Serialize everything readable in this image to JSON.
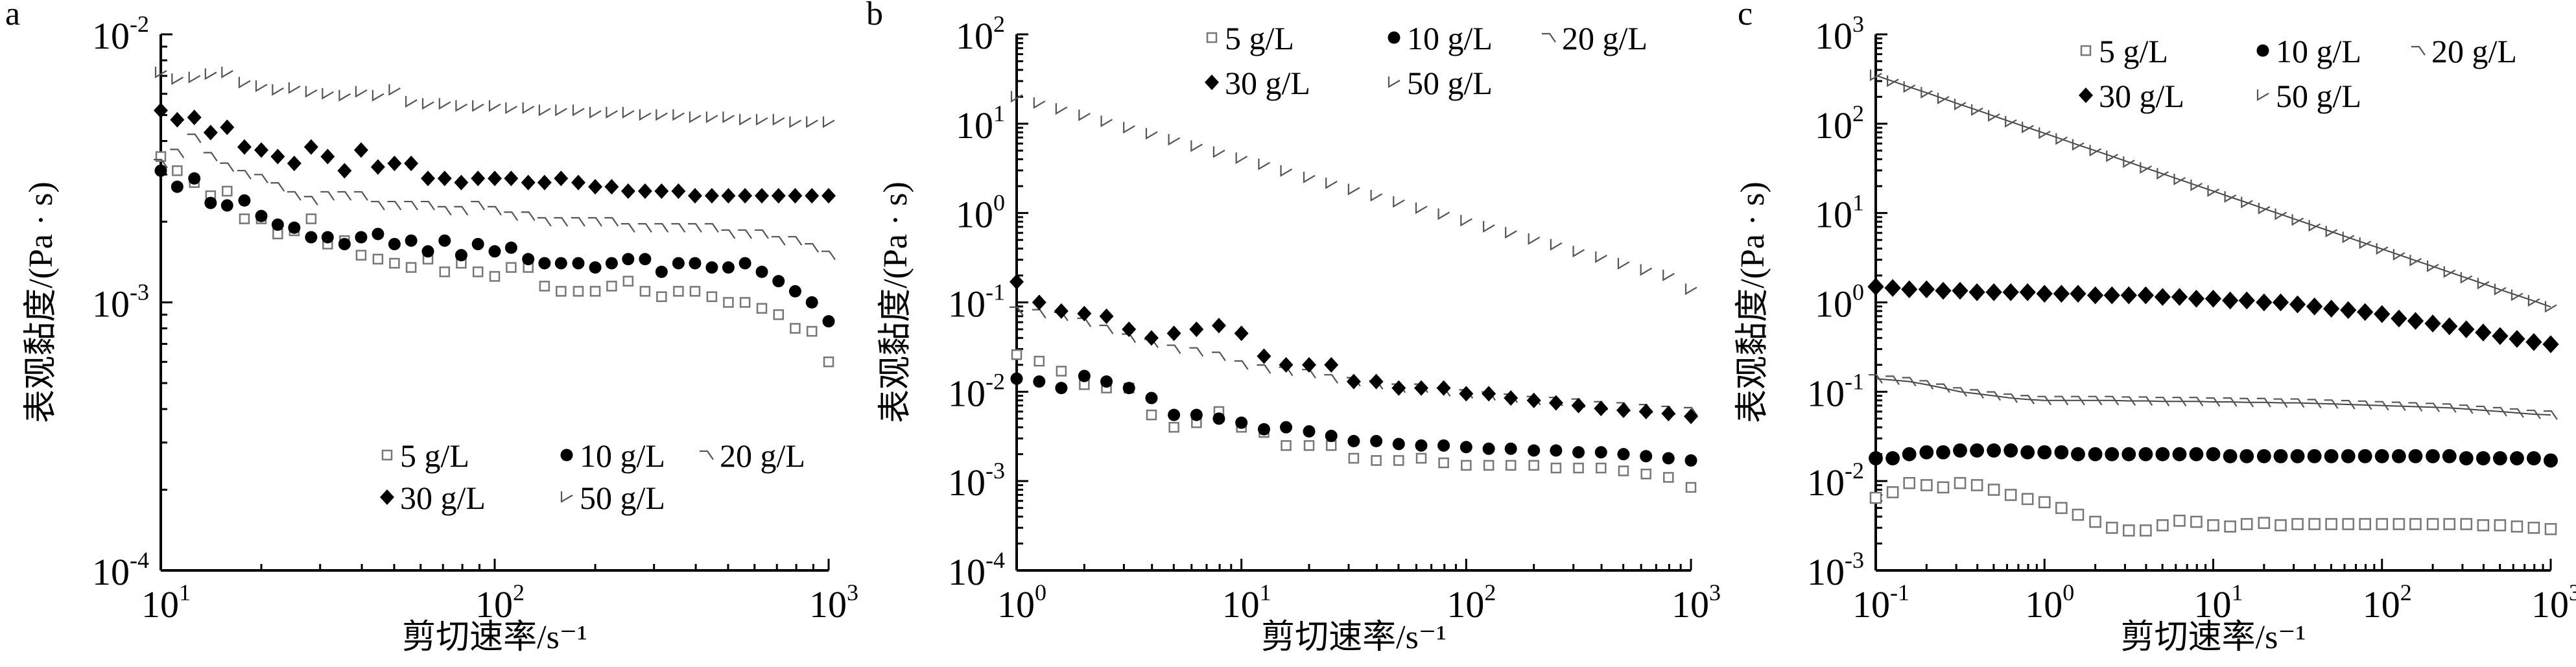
{
  "chart_data": [
    {
      "type": "scatter",
      "panel_label": "a",
      "xlabel": "剪切速率/s⁻¹",
      "ylabel": "表观黏度/(Pa · s)",
      "xscale": "log",
      "yscale": "log",
      "xlim": [
        10,
        1000
      ],
      "ylim": [
        0.0001,
        0.01
      ],
      "x_ticks": [
        {
          "base": "10",
          "exp": "1"
        },
        {
          "base": "10",
          "exp": "2"
        },
        {
          "base": "10",
          "exp": "3"
        }
      ],
      "y_ticks": [
        {
          "base": "10",
          "exp": "-4"
        },
        {
          "base": "10",
          "exp": "-3"
        },
        {
          "base": "10",
          "exp": "-2"
        }
      ],
      "legend_placement": "bottom-right",
      "x": [
        10,
        11.2,
        12.6,
        14.1,
        15.8,
        17.8,
        20,
        22.4,
        25.1,
        28.2,
        31.6,
        35.5,
        39.8,
        44.7,
        50.1,
        56.2,
        63.1,
        70.8,
        79.4,
        89.1,
        100,
        112,
        126,
        141,
        158,
        178,
        200,
        224,
        251,
        282,
        316,
        355,
        398,
        447,
        501,
        562,
        631,
        708,
        794,
        891,
        1000
      ],
      "series": [
        {
          "name": "5 g/L",
          "marker": "square",
          "y": [
            0.0035,
            0.0031,
            0.0028,
            0.0025,
            0.0026,
            0.00205,
            0.00205,
            0.0018,
            0.00185,
            0.00205,
            0.00165,
            0.0017,
            0.0015,
            0.00145,
            0.0014,
            0.00135,
            0.00145,
            0.0013,
            0.0014,
            0.0013,
            0.00125,
            0.00135,
            0.00135,
            0.00115,
            0.0011,
            0.0011,
            0.0011,
            0.00115,
            0.0012,
            0.0011,
            0.00105,
            0.0011,
            0.0011,
            0.00105,
            0.001,
            0.001,
            0.00095,
            0.0009,
            0.0008,
            0.00078,
            0.0006
          ]
        },
        {
          "name": "10 g/L",
          "marker": "circle",
          "y": [
            0.0031,
            0.0027,
            0.0029,
            0.00235,
            0.0023,
            0.0024,
            0.0021,
            0.00195,
            0.0019,
            0.00175,
            0.00175,
            0.00165,
            0.00175,
            0.0018,
            0.00165,
            0.0017,
            0.00155,
            0.0017,
            0.0015,
            0.00165,
            0.00155,
            0.0016,
            0.00145,
            0.0014,
            0.0014,
            0.0014,
            0.00135,
            0.0014,
            0.00145,
            0.00145,
            0.0013,
            0.0014,
            0.0014,
            0.00135,
            0.00135,
            0.0014,
            0.0013,
            0.0012,
            0.0011,
            0.001,
            0.00085
          ]
        },
        {
          "name": "20 g/L",
          "marker": "hook",
          "y": [
            0.0033,
            0.0036,
            0.0041,
            0.0035,
            0.0032,
            0.003,
            0.0029,
            0.0027,
            0.0025,
            0.0024,
            0.0025,
            0.0025,
            0.0025,
            0.0023,
            0.0023,
            0.0023,
            0.0023,
            0.0022,
            0.0022,
            0.0023,
            0.0022,
            0.0021,
            0.0021,
            0.002,
            0.002,
            0.002,
            0.002,
            0.002,
            0.0019,
            0.0019,
            0.0019,
            0.0019,
            0.0019,
            0.0019,
            0.0018,
            0.0018,
            0.0018,
            0.0017,
            0.0017,
            0.0016,
            0.0015
          ]
        },
        {
          "name": "30 g/L",
          "marker": "diamond",
          "y": [
            0.0052,
            0.0048,
            0.0049,
            0.0043,
            0.0045,
            0.0038,
            0.0037,
            0.0035,
            0.0033,
            0.0038,
            0.0035,
            0.0031,
            0.0037,
            0.0032,
            0.0033,
            0.0033,
            0.0029,
            0.0029,
            0.0028,
            0.0029,
            0.0029,
            0.0029,
            0.0028,
            0.0028,
            0.0029,
            0.0028,
            0.0027,
            0.0027,
            0.0026,
            0.0026,
            0.0026,
            0.0026,
            0.0025,
            0.0025,
            0.0025,
            0.0025,
            0.0025,
            0.0025,
            0.0025,
            0.0025,
            0.0025
          ]
        },
        {
          "name": "50 g/L",
          "marker": "check",
          "y": [
            0.0072,
            0.0068,
            0.0069,
            0.0071,
            0.0072,
            0.0066,
            0.0064,
            0.0062,
            0.0063,
            0.0061,
            0.006,
            0.0059,
            0.0061,
            0.0059,
            0.0062,
            0.0056,
            0.0055,
            0.0055,
            0.0054,
            0.0054,
            0.0054,
            0.0053,
            0.0053,
            0.0052,
            0.0052,
            0.0052,
            0.0051,
            0.0051,
            0.0051,
            0.005,
            0.005,
            0.005,
            0.0049,
            0.0049,
            0.0049,
            0.0048,
            0.0048,
            0.0048,
            0.0047,
            0.0047,
            0.0047
          ]
        }
      ]
    },
    {
      "type": "scatter",
      "panel_label": "b",
      "xlabel": "剪切速率/s⁻¹",
      "ylabel": "表观黏度/(Pa · s)",
      "xscale": "log",
      "yscale": "log",
      "xlim": [
        1,
        1000
      ],
      "ylim": [
        0.0001,
        100
      ],
      "x_ticks": [
        {
          "base": "10",
          "exp": "0"
        },
        {
          "base": "10",
          "exp": "1"
        },
        {
          "base": "10",
          "exp": "2"
        },
        {
          "base": "10",
          "exp": "3"
        }
      ],
      "y_ticks": [
        {
          "base": "10",
          "exp": "-4"
        },
        {
          "base": "10",
          "exp": "-3"
        },
        {
          "base": "10",
          "exp": "-2"
        },
        {
          "base": "10",
          "exp": "-1"
        },
        {
          "base": "10",
          "exp": "0"
        },
        {
          "base": "10",
          "exp": "1"
        },
        {
          "base": "10",
          "exp": "2"
        }
      ],
      "legend_placement": "top-right",
      "x": [
        1,
        1.26,
        1.58,
        2,
        2.51,
        3.16,
        3.98,
        5.01,
        6.31,
        7.94,
        10,
        12.6,
        15.8,
        20,
        25.1,
        31.6,
        39.8,
        50.1,
        63.1,
        79.4,
        100,
        126,
        158,
        200,
        251,
        316,
        398,
        501,
        631,
        794,
        1000
      ],
      "series": [
        {
          "name": "5 g/L",
          "marker": "square",
          "y": [
            0.026,
            0.022,
            0.017,
            0.012,
            0.011,
            0.011,
            0.0055,
            0.004,
            0.0045,
            0.006,
            0.004,
            0.0035,
            0.0025,
            0.0025,
            0.0025,
            0.0018,
            0.0017,
            0.0017,
            0.0018,
            0.0016,
            0.0015,
            0.0015,
            0.0015,
            0.0015,
            0.0014,
            0.0014,
            0.0014,
            0.0013,
            0.0012,
            0.0011,
            0.00085
          ]
        },
        {
          "name": "10 g/L",
          "marker": "circle",
          "y": [
            0.014,
            0.013,
            0.011,
            0.015,
            0.013,
            0.011,
            0.0085,
            0.0055,
            0.0055,
            0.005,
            0.0045,
            0.0038,
            0.004,
            0.0036,
            0.0032,
            0.0028,
            0.0028,
            0.0026,
            0.0025,
            0.0025,
            0.0024,
            0.0023,
            0.0023,
            0.0022,
            0.0022,
            0.0021,
            0.0021,
            0.002,
            0.0019,
            0.0018,
            0.0017
          ]
        },
        {
          "name": "20 g/L",
          "marker": "hook",
          "y": [
            0.08,
            0.075,
            0.07,
            0.06,
            0.05,
            0.04,
            0.035,
            0.03,
            0.028,
            0.025,
            0.02,
            0.018,
            0.017,
            0.016,
            0.014,
            0.013,
            0.012,
            0.011,
            0.011,
            0.01,
            0.0095,
            0.009,
            0.0085,
            0.008,
            0.0078,
            0.0075,
            0.007,
            0.0068,
            0.0065,
            0.0062,
            0.006
          ]
        },
        {
          "name": "30 g/L",
          "marker": "diamond",
          "y": [
            0.17,
            0.1,
            0.08,
            0.075,
            0.07,
            0.05,
            0.04,
            0.045,
            0.05,
            0.055,
            0.045,
            0.025,
            0.02,
            0.02,
            0.02,
            0.013,
            0.013,
            0.011,
            0.011,
            0.011,
            0.0095,
            0.0095,
            0.0085,
            0.008,
            0.0075,
            0.007,
            0.0065,
            0.0062,
            0.006,
            0.0057,
            0.0053
          ]
        },
        {
          "name": "50 g/L",
          "marker": "check",
          "y": [
            20,
            17,
            14.6,
            12.4,
            10.6,
            9.0,
            7.7,
            6.6,
            5.6,
            4.8,
            4.1,
            3.5,
            2.95,
            2.5,
            2.15,
            1.83,
            1.56,
            1.33,
            1.13,
            0.97,
            0.82,
            0.7,
            0.6,
            0.51,
            0.44,
            0.37,
            0.32,
            0.27,
            0.23,
            0.2,
            0.14
          ]
        }
      ]
    },
    {
      "type": "scatter",
      "panel_label": "c",
      "xlabel": "剪切速率/s⁻¹",
      "ylabel": "表观黏度/(Pa · s)",
      "xscale": "log",
      "yscale": "log",
      "xlim": [
        0.1,
        1000
      ],
      "ylim": [
        0.001,
        1000
      ],
      "x_ticks": [
        {
          "base": "10",
          "exp": "-1"
        },
        {
          "base": "10",
          "exp": "0"
        },
        {
          "base": "10",
          "exp": "1"
        },
        {
          "base": "10",
          "exp": "2"
        },
        {
          "base": "10",
          "exp": "3"
        }
      ],
      "y_ticks": [
        {
          "base": "10",
          "exp": "-3"
        },
        {
          "base": "10",
          "exp": "-2"
        },
        {
          "base": "10",
          "exp": "-1"
        },
        {
          "base": "10",
          "exp": "0"
        },
        {
          "base": "10",
          "exp": "1"
        },
        {
          "base": "10",
          "exp": "2"
        },
        {
          "base": "10",
          "exp": "3"
        }
      ],
      "legend_placement": "top-right",
      "x": [
        0.1,
        0.126,
        0.158,
        0.2,
        0.251,
        0.316,
        0.398,
        0.501,
        0.631,
        0.794,
        1,
        1.26,
        1.58,
        2,
        2.51,
        3.16,
        3.98,
        5.01,
        6.31,
        7.94,
        10,
        12.6,
        15.8,
        20,
        25.1,
        31.6,
        39.8,
        50.1,
        63.1,
        79.4,
        100,
        126,
        158,
        200,
        251,
        316,
        398,
        501,
        631,
        794,
        1000
      ],
      "series": [
        {
          "name": "5 g/L",
          "marker": "square",
          "y": [
            0.0065,
            0.0075,
            0.0095,
            0.009,
            0.0085,
            0.0095,
            0.009,
            0.008,
            0.007,
            0.0063,
            0.0058,
            0.005,
            0.0042,
            0.0035,
            0.003,
            0.0028,
            0.0028,
            0.0032,
            0.0036,
            0.0035,
            0.0032,
            0.0031,
            0.0033,
            0.0034,
            0.0032,
            0.0033,
            0.0033,
            0.0033,
            0.0033,
            0.0033,
            0.0033,
            0.0033,
            0.0033,
            0.0033,
            0.0033,
            0.0033,
            0.0032,
            0.0032,
            0.0031,
            0.003,
            0.0029
          ]
        },
        {
          "name": "10 g/L",
          "marker": "circle",
          "y": [
            0.018,
            0.018,
            0.02,
            0.021,
            0.021,
            0.022,
            0.022,
            0.022,
            0.022,
            0.021,
            0.021,
            0.021,
            0.02,
            0.02,
            0.02,
            0.02,
            0.02,
            0.02,
            0.02,
            0.02,
            0.02,
            0.019,
            0.019,
            0.019,
            0.019,
            0.019,
            0.019,
            0.019,
            0.019,
            0.019,
            0.019,
            0.019,
            0.019,
            0.019,
            0.019,
            0.018,
            0.018,
            0.018,
            0.018,
            0.018,
            0.017
          ]
        },
        {
          "name": "20 g/L",
          "marker": "hook",
          "line": true,
          "y": [
            0.14,
            0.135,
            0.13,
            0.12,
            0.11,
            0.1,
            0.095,
            0.09,
            0.085,
            0.082,
            0.08,
            0.08,
            0.08,
            0.08,
            0.08,
            0.079,
            0.079,
            0.078,
            0.078,
            0.078,
            0.077,
            0.077,
            0.076,
            0.076,
            0.075,
            0.075,
            0.074,
            0.073,
            0.072,
            0.071,
            0.07,
            0.069,
            0.068,
            0.067,
            0.066,
            0.064,
            0.062,
            0.06,
            0.058,
            0.056,
            0.055
          ]
        },
        {
          "name": "30 g/L",
          "marker": "diamond",
          "y": [
            1.5,
            1.45,
            1.4,
            1.4,
            1.35,
            1.35,
            1.3,
            1.3,
            1.3,
            1.3,
            1.25,
            1.25,
            1.25,
            1.2,
            1.2,
            1.2,
            1.2,
            1.15,
            1.15,
            1.1,
            1.1,
            1.05,
            1.05,
            1.0,
            1.0,
            0.95,
            0.9,
            0.85,
            0.82,
            0.78,
            0.74,
            0.66,
            0.62,
            0.58,
            0.54,
            0.5,
            0.46,
            0.42,
            0.39,
            0.36,
            0.34
          ]
        },
        {
          "name": "50 g/L",
          "marker": "check",
          "line": true,
          "y": [
            347,
            299,
            257,
            222,
            191,
            164,
            142,
            122,
            105,
            90.6,
            78.2,
            67.3,
            57.9,
            49.9,
            43.1,
            37.1,
            31.9,
            27.5,
            23.7,
            20.4,
            17.6,
            15.1,
            13.1,
            11.2,
            9.68,
            8.34,
            7.19,
            6.19,
            5.33,
            4.59,
            3.96,
            3.41,
            2.94,
            2.53,
            2.18,
            1.88,
            1.62,
            1.39,
            1.2,
            1.04,
            0.89
          ]
        }
      ]
    }
  ]
}
